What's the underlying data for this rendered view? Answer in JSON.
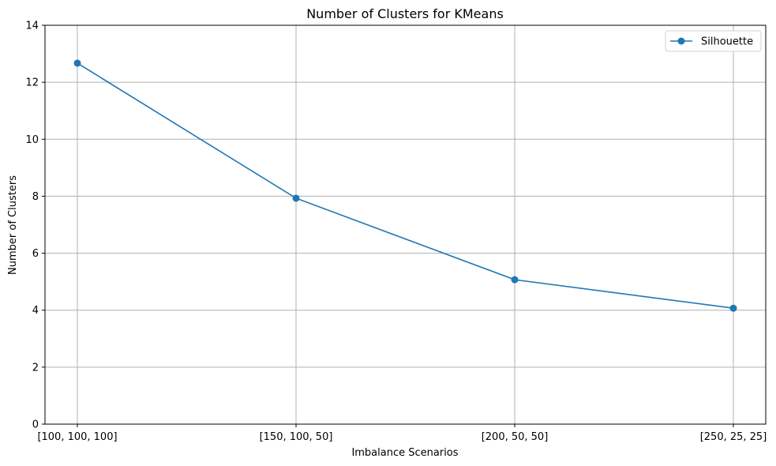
{
  "chart_data": {
    "type": "line",
    "title": "Number of Clusters for KMeans",
    "xlabel": "Imbalance Scenarios",
    "ylabel": "Number of Clusters",
    "categories": [
      "[100, 100, 100]",
      "[150, 100, 50]",
      "[200, 50, 50]",
      "[250, 25, 25]"
    ],
    "series": [
      {
        "name": "Silhouette",
        "values": [
          12.67,
          7.93,
          5.07,
          4.07
        ],
        "color": "#1f77b4",
        "marker": "circle"
      }
    ],
    "ylim": [
      0,
      14
    ],
    "yticks": [
      0,
      2,
      4,
      6,
      8,
      10,
      12,
      14
    ],
    "grid": true,
    "legend_position": "top-right"
  }
}
